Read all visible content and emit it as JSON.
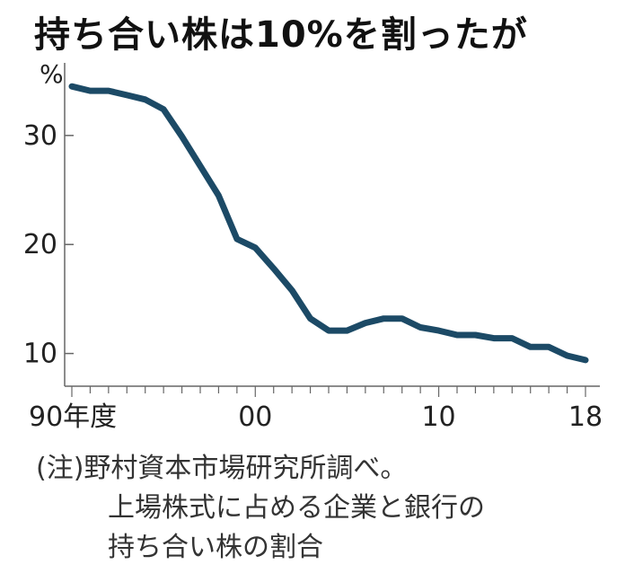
{
  "title": "持ち合い株は10%を割ったが",
  "note": {
    "line1": "(注)野村資本市場研究所調べ。",
    "line2": "上場株式に占める企業と銀行の",
    "line3": "持ち合い株の割合"
  },
  "colors": {
    "line": "#1c4a66",
    "axis": "#666666",
    "text": "#222222"
  },
  "chart_data": {
    "type": "line",
    "title": "持ち合い株は10%を割ったが",
    "ylabel": "%",
    "xlim": [
      1990,
      2018
    ],
    "ylim": [
      7,
      36
    ],
    "y_ticks": [
      10,
      20,
      30
    ],
    "x_tick_labels": [
      {
        "x": 1990,
        "label": "90年度"
      },
      {
        "x": 2000,
        "label": "00"
      },
      {
        "x": 2010,
        "label": "10"
      },
      {
        "x": 2018,
        "label": "18"
      }
    ],
    "grid": false,
    "series": [
      {
        "x": [
          1990,
          1991,
          1992,
          1993,
          1994,
          1995,
          1996,
          1997,
          1998,
          1999,
          2000,
          2001,
          2002,
          2003,
          2004,
          2005,
          2006,
          2007,
          2008,
          2009,
          2010,
          2011,
          2012,
          2013,
          2014,
          2015,
          2016,
          2017,
          2018
        ],
        "values": [
          34.5,
          34.1,
          34.1,
          33.7,
          33.3,
          32.4,
          29.9,
          27.2,
          24.5,
          20.5,
          19.7,
          17.8,
          15.8,
          13.2,
          12.1,
          12.1,
          12.8,
          13.2,
          13.2,
          12.4,
          12.1,
          11.7,
          11.7,
          11.4,
          11.4,
          10.6,
          10.6,
          9.8,
          9.4
        ]
      }
    ]
  }
}
